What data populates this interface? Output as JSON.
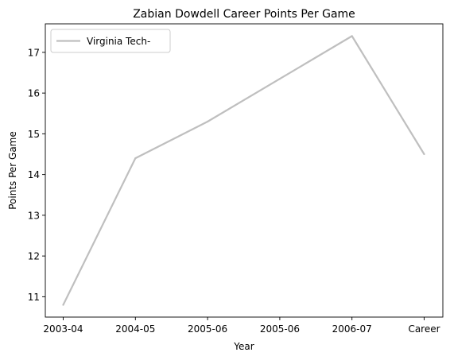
{
  "chart_data": {
    "type": "line",
    "title": "Zabian Dowdell Career Points Per Game",
    "xlabel": "Year",
    "ylabel": "Points Per Game",
    "categories": [
      "2003-04",
      "2004-05",
      "2005-06",
      "2005-06",
      "2006-07",
      "Career"
    ],
    "y_ticks": [
      11,
      12,
      13,
      14,
      15,
      16,
      17
    ],
    "ylim": [
      10.5,
      17.7
    ],
    "grid": false,
    "legend_position": "top-left",
    "series": [
      {
        "name": "Virginia Tech-",
        "color": "#bfbfbf",
        "x": [
          0,
          1,
          2,
          3,
          4,
          5
        ],
        "values": [
          10.8,
          14.4,
          15.3,
          16.35,
          17.4,
          14.5
        ]
      }
    ]
  }
}
